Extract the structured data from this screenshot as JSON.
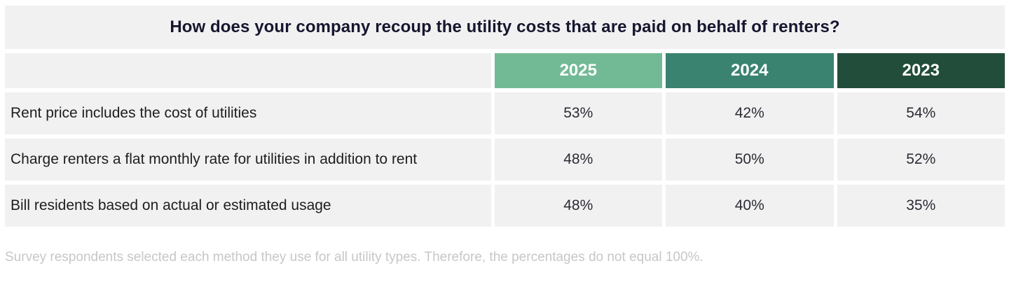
{
  "chart_data": {
    "type": "table",
    "title": "How does your company recoup the utility costs that are paid on behalf of renters?",
    "columns": [
      "2025",
      "2024",
      "2023"
    ],
    "column_colors": [
      "#72ba95",
      "#3a8370",
      "#214d3a"
    ],
    "rows": [
      {
        "label": "Rent price includes the cost of utilities",
        "values": [
          "53%",
          "42%",
          "54%"
        ]
      },
      {
        "label": "Charge renters a flat monthly rate for utilities in addition to rent",
        "values": [
          "48%",
          "50%",
          "52%"
        ]
      },
      {
        "label": "Bill residents based on actual or estimated usage",
        "values": [
          "48%",
          "40%",
          "35%"
        ]
      }
    ],
    "footnote": "Survey respondents selected each method they use for all utility types. Therefore, the percentages do not equal 100%.",
    "layout": {
      "legend_position": "none",
      "grid": "off",
      "row_background": "#f2f1f2",
      "title_background": "#f2f1f2"
    }
  }
}
